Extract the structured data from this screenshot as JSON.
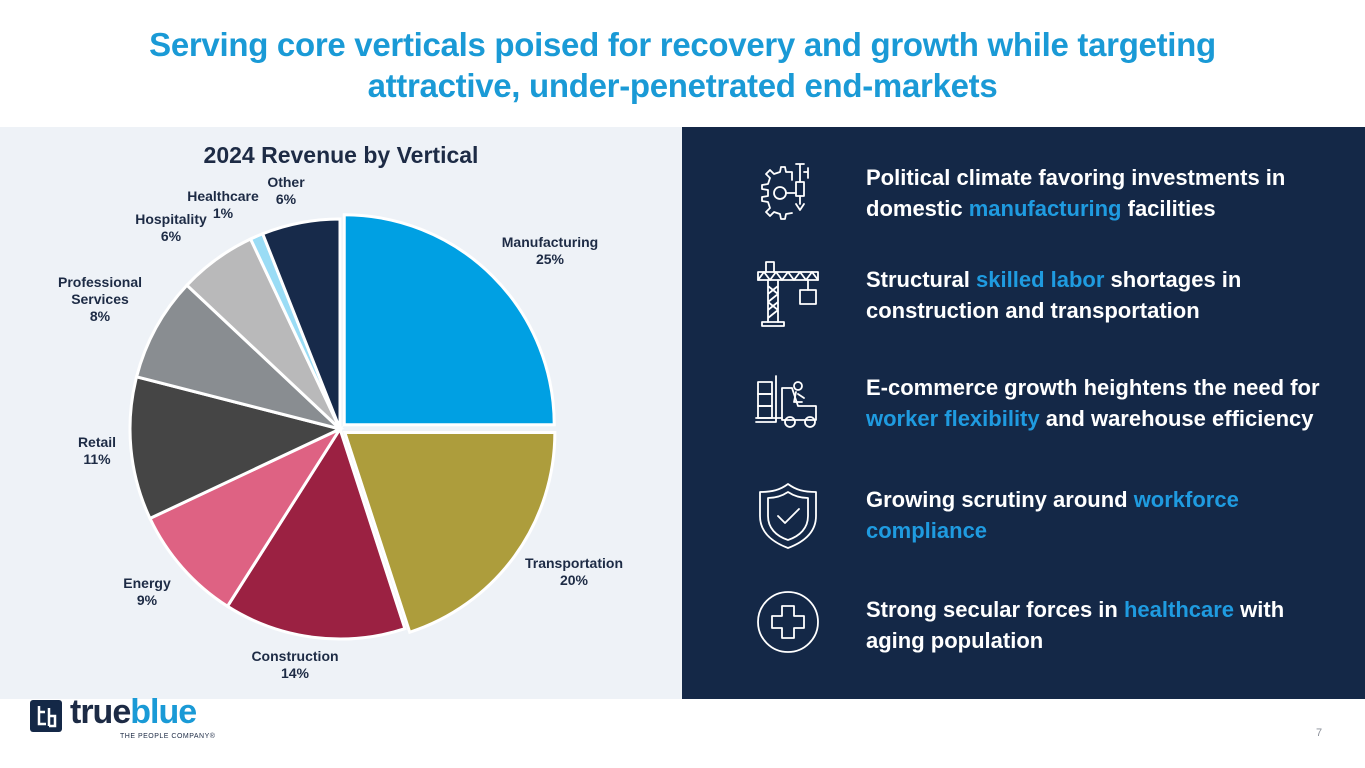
{
  "title": {
    "line1": "Serving core verticals poised for recovery and growth while targeting",
    "line2": "attractive, under-penetrated end-markets"
  },
  "chart_data": {
    "type": "pie",
    "title": "2024 Revenue by Vertical",
    "categories": [
      "Manufacturing",
      "Transportation",
      "Construction",
      "Energy",
      "Retail",
      "Professional Services",
      "Hospitality",
      "Healthcare",
      "Other"
    ],
    "values": [
      25,
      20,
      14,
      9,
      11,
      8,
      6,
      1,
      6
    ],
    "labels": [
      "25%",
      "20%",
      "14%",
      "9%",
      "11%",
      "8%",
      "6%",
      "1%",
      "6%"
    ],
    "colors": [
      "#00a0e3",
      "#ad9d3c",
      "#9b2142",
      "#de6283",
      "#454545",
      "#898d91",
      "#b9b9ba",
      "#9adcf5",
      "#172a4a"
    ],
    "start_angle_deg": 0,
    "direction": "clockwise",
    "exploded": [
      true,
      true,
      false,
      false,
      false,
      false,
      false,
      false,
      false
    ]
  },
  "points": [
    {
      "icon": "gear-robot-arm-icon",
      "pre": "Political climate favoring investments in domestic ",
      "hl": "manufacturing",
      "post": " facilities"
    },
    {
      "icon": "construction-crane-icon",
      "pre": "Structural ",
      "hl": "skilled labor",
      "post": " shortages in construction and transportation"
    },
    {
      "icon": "forklift-icon",
      "pre": "E-commerce growth heightens the need for ",
      "hl": "worker flexibility",
      "post": " and warehouse efficiency"
    },
    {
      "icon": "shield-check-icon",
      "pre": "Growing scrutiny around ",
      "hl": "workforce compliance",
      "post": ""
    },
    {
      "icon": "medical-cross-icon",
      "pre": "Strong secular forces in ",
      "hl": "healthcare",
      "post": " with aging population"
    }
  ],
  "logo": {
    "part1": "true",
    "part2": "blue",
    "tagline": "THE PEOPLE COMPANY®"
  },
  "page_number": "7",
  "colors": {
    "accent": "#1a9ad6",
    "navy": "#142847",
    "panel_light": "#eef2f7"
  }
}
